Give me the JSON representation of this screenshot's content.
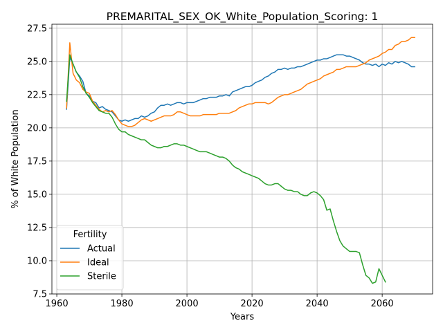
{
  "chart_data": {
    "type": "line",
    "title": "PREMARITAL_SEX_OK_White_Population_Scoring: 1",
    "xlabel": "Years",
    "ylabel": "% of White Population",
    "xlim": [
      1958.5,
      2075.5
    ],
    "ylim": [
      7.5,
      27.8
    ],
    "xticks": [
      1960,
      1980,
      2000,
      2020,
      2040,
      2060
    ],
    "yticks": [
      7.5,
      10.0,
      12.5,
      15.0,
      17.5,
      20.0,
      22.5,
      25.0,
      27.5
    ],
    "yticks_labels": [
      "7.5",
      "10.0",
      "12.5",
      "15.0",
      "17.5",
      "20.0",
      "22.5",
      "25.0",
      "27.5"
    ],
    "grid": true,
    "legend": {
      "title": "Fertility",
      "placement": "lower-left"
    },
    "series": [
      {
        "name": "Actual",
        "color": "#1f77b4",
        "x": [
          1963,
          1964,
          1965,
          1966,
          1967,
          1968,
          1969,
          1970,
          1971,
          1972,
          1973,
          1974,
          1975,
          1976,
          1977,
          1978,
          1979,
          1980,
          1981,
          1982,
          1983,
          1984,
          1985,
          1986,
          1987,
          1988,
          1989,
          1990,
          1991,
          1992,
          1993,
          1994,
          1995,
          1996,
          1997,
          1998,
          1999,
          2000,
          2001,
          2002,
          2003,
          2004,
          2005,
          2006,
          2007,
          2008,
          2009,
          2010,
          2011,
          2012,
          2013,
          2014,
          2015,
          2016,
          2017,
          2018,
          2019,
          2020,
          2021,
          2022,
          2023,
          2024,
          2025,
          2026,
          2027,
          2028,
          2029,
          2030,
          2031,
          2032,
          2033,
          2034,
          2035,
          2036,
          2037,
          2038,
          2039,
          2040,
          2041,
          2042,
          2043,
          2044,
          2045,
          2046,
          2047,
          2048,
          2049,
          2050,
          2051,
          2052,
          2053,
          2054,
          2055,
          2056,
          2057,
          2058,
          2059,
          2060,
          2061,
          2062,
          2063,
          2064,
          2065,
          2066,
          2067,
          2068,
          2069,
          2070
        ],
        "values": [
          21.4,
          25.3,
          24.8,
          24.2,
          23.9,
          23.5,
          22.6,
          22.4,
          22.0,
          21.9,
          21.5,
          21.6,
          21.4,
          21.3,
          21.2,
          20.9,
          20.6,
          20.5,
          20.6,
          20.5,
          20.6,
          20.7,
          20.7,
          20.9,
          20.8,
          20.9,
          21.1,
          21.2,
          21.5,
          21.7,
          21.7,
          21.8,
          21.7,
          21.8,
          21.9,
          21.9,
          21.8,
          21.9,
          21.9,
          21.9,
          22.0,
          22.1,
          22.2,
          22.2,
          22.3,
          22.3,
          22.3,
          22.4,
          22.4,
          22.5,
          22.4,
          22.7,
          22.8,
          22.9,
          23.0,
          23.1,
          23.1,
          23.2,
          23.4,
          23.5,
          23.6,
          23.8,
          23.9,
          24.1,
          24.2,
          24.4,
          24.4,
          24.5,
          24.4,
          24.5,
          24.5,
          24.6,
          24.6,
          24.7,
          24.8,
          24.9,
          25.0,
          25.1,
          25.1,
          25.2,
          25.2,
          25.3,
          25.4,
          25.5,
          25.5,
          25.5,
          25.4,
          25.4,
          25.3,
          25.2,
          25.1,
          24.9,
          24.8,
          24.8,
          24.7,
          24.8,
          24.6,
          24.8,
          24.7,
          24.9,
          24.8,
          25.0,
          24.9,
          25.0,
          24.9,
          24.8,
          24.6,
          24.6
        ]
      },
      {
        "name": "Ideal",
        "color": "#ff7f0e",
        "x": [
          1963,
          1964,
          1965,
          1966,
          1967,
          1968,
          1969,
          1970,
          1971,
          1972,
          1973,
          1974,
          1975,
          1976,
          1977,
          1978,
          1979,
          1980,
          1981,
          1982,
          1983,
          1984,
          1985,
          1986,
          1987,
          1988,
          1989,
          1990,
          1991,
          1992,
          1993,
          1994,
          1995,
          1996,
          1997,
          1998,
          1999,
          2000,
          2001,
          2002,
          2003,
          2004,
          2005,
          2006,
          2007,
          2008,
          2009,
          2010,
          2011,
          2012,
          2013,
          2014,
          2015,
          2016,
          2017,
          2018,
          2019,
          2020,
          2021,
          2022,
          2023,
          2024,
          2025,
          2026,
          2027,
          2028,
          2029,
          2030,
          2031,
          2032,
          2033,
          2034,
          2035,
          2036,
          2037,
          2038,
          2039,
          2040,
          2041,
          2042,
          2043,
          2044,
          2045,
          2046,
          2047,
          2048,
          2049,
          2050,
          2051,
          2052,
          2053,
          2054,
          2055,
          2056,
          2057,
          2058,
          2059,
          2060,
          2061,
          2062,
          2063,
          2064,
          2065,
          2066,
          2067,
          2068,
          2069,
          2070
        ],
        "values": [
          21.5,
          26.4,
          24.1,
          23.6,
          23.4,
          22.9,
          22.7,
          22.6,
          22.0,
          21.7,
          21.4,
          21.2,
          21.3,
          21.2,
          21.3,
          21.0,
          20.6,
          20.3,
          20.2,
          20.1,
          20.1,
          20.2,
          20.4,
          20.6,
          20.7,
          20.6,
          20.5,
          20.6,
          20.7,
          20.8,
          20.9,
          20.9,
          20.9,
          21.0,
          21.2,
          21.2,
          21.1,
          21.0,
          20.9,
          20.9,
          20.9,
          20.9,
          21.0,
          21.0,
          21.0,
          21.0,
          21.0,
          21.1,
          21.1,
          21.1,
          21.1,
          21.2,
          21.3,
          21.5,
          21.6,
          21.7,
          21.8,
          21.8,
          21.9,
          21.9,
          21.9,
          21.9,
          21.8,
          21.9,
          22.1,
          22.3,
          22.4,
          22.5,
          22.5,
          22.6,
          22.7,
          22.8,
          22.9,
          23.1,
          23.3,
          23.4,
          23.5,
          23.6,
          23.7,
          23.9,
          24.0,
          24.1,
          24.2,
          24.4,
          24.4,
          24.5,
          24.6,
          24.6,
          24.6,
          24.6,
          24.7,
          24.8,
          24.9,
          25.1,
          25.2,
          25.3,
          25.4,
          25.6,
          25.7,
          25.9,
          25.9,
          26.2,
          26.3,
          26.5,
          26.5,
          26.6,
          26.8,
          26.8
        ]
      },
      {
        "name": "Sterile",
        "color": "#2ca02c",
        "x": [
          1963,
          1964,
          1965,
          1966,
          1967,
          1968,
          1969,
          1970,
          1971,
          1972,
          1973,
          1974,
          1975,
          1976,
          1977,
          1978,
          1979,
          1980,
          1981,
          1982,
          1983,
          1984,
          1985,
          1986,
          1987,
          1988,
          1989,
          1990,
          1991,
          1992,
          1993,
          1994,
          1995,
          1996,
          1997,
          1998,
          1999,
          2000,
          2001,
          2002,
          2003,
          2004,
          2005,
          2006,
          2007,
          2008,
          2009,
          2010,
          2011,
          2012,
          2013,
          2014,
          2015,
          2016,
          2017,
          2018,
          2019,
          2020,
          2021,
          2022,
          2023,
          2024,
          2025,
          2026,
          2027,
          2028,
          2029,
          2030,
          2031,
          2032,
          2033,
          2034,
          2035,
          2036,
          2037,
          2038,
          2039,
          2040,
          2041,
          2042,
          2043,
          2044,
          2045,
          2046,
          2047,
          2048,
          2049,
          2050,
          2051,
          2052,
          2053,
          2054,
          2055,
          2056,
          2057,
          2058,
          2059,
          2060,
          2061
        ],
        "values": [
          22.0,
          25.5,
          24.8,
          24.2,
          23.8,
          23.1,
          22.6,
          22.3,
          21.9,
          21.6,
          21.3,
          21.2,
          21.1,
          21.1,
          20.8,
          20.3,
          19.9,
          19.7,
          19.7,
          19.5,
          19.4,
          19.3,
          19.2,
          19.1,
          19.1,
          18.9,
          18.7,
          18.6,
          18.5,
          18.5,
          18.6,
          18.6,
          18.7,
          18.8,
          18.8,
          18.7,
          18.7,
          18.6,
          18.5,
          18.4,
          18.3,
          18.2,
          18.2,
          18.2,
          18.1,
          18.0,
          17.9,
          17.8,
          17.8,
          17.7,
          17.5,
          17.2,
          17.0,
          16.9,
          16.7,
          16.6,
          16.5,
          16.4,
          16.3,
          16.2,
          16.0,
          15.8,
          15.7,
          15.7,
          15.8,
          15.8,
          15.6,
          15.4,
          15.3,
          15.3,
          15.2,
          15.2,
          15.0,
          14.9,
          14.9,
          15.1,
          15.2,
          15.1,
          14.9,
          14.6,
          13.8,
          13.9,
          13.0,
          12.2,
          11.5,
          11.1,
          10.9,
          10.7,
          10.7,
          10.7,
          10.6,
          9.7,
          8.9,
          8.7,
          8.3,
          8.4,
          9.4,
          8.9,
          8.4
        ]
      }
    ]
  }
}
